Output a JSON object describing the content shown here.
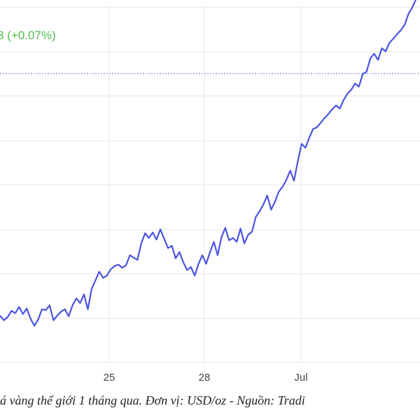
{
  "header": {
    "change_text": "3 (+0.07%)",
    "change_color": "#4cbb4c"
  },
  "colors": {
    "line": "#4a54e1",
    "grid": "#e6e6e6",
    "reference_line": "#6b7be6"
  },
  "chart_data": {
    "type": "line",
    "x_ticks": [
      "25",
      "28",
      "Jul"
    ],
    "grid": true,
    "reference_line": true,
    "series": [
      {
        "values": [
          360,
          354,
          358,
          366,
          363,
          371,
          362,
          369,
          356,
          347,
          355,
          368,
          367,
          373,
          354,
          360,
          365,
          368,
          359,
          373,
          382,
          376,
          387,
          368,
          394,
          405,
          416,
          408,
          411,
          419,
          423,
          425,
          421,
          424,
          437,
          434,
          431,
          452,
          465,
          459,
          466,
          457,
          470,
          458,
          446,
          449,
          433,
          441,
          428,
          418,
          422,
          411,
          426,
          437,
          426,
          441,
          454,
          437,
          460,
          472,
          456,
          459,
          454,
          471,
          452,
          463,
          467,
          486,
          493,
          502,
          513,
          495,
          505,
          518,
          524,
          533,
          545,
          532,
          557,
          579,
          574,
          587,
          598,
          600,
          606,
          612,
          617,
          623,
          628,
          624,
          635,
          643,
          648,
          656,
          652,
          668,
          671,
          688,
          694,
          686,
          701,
          697,
          708,
          713,
          719,
          724,
          731,
          745,
          753,
          764,
          772
        ]
      }
    ]
  },
  "caption": {
    "text": "á vàng thế giới 1 tháng qua. Đơn vị: USD/oz - Nguồn: Tradi"
  }
}
